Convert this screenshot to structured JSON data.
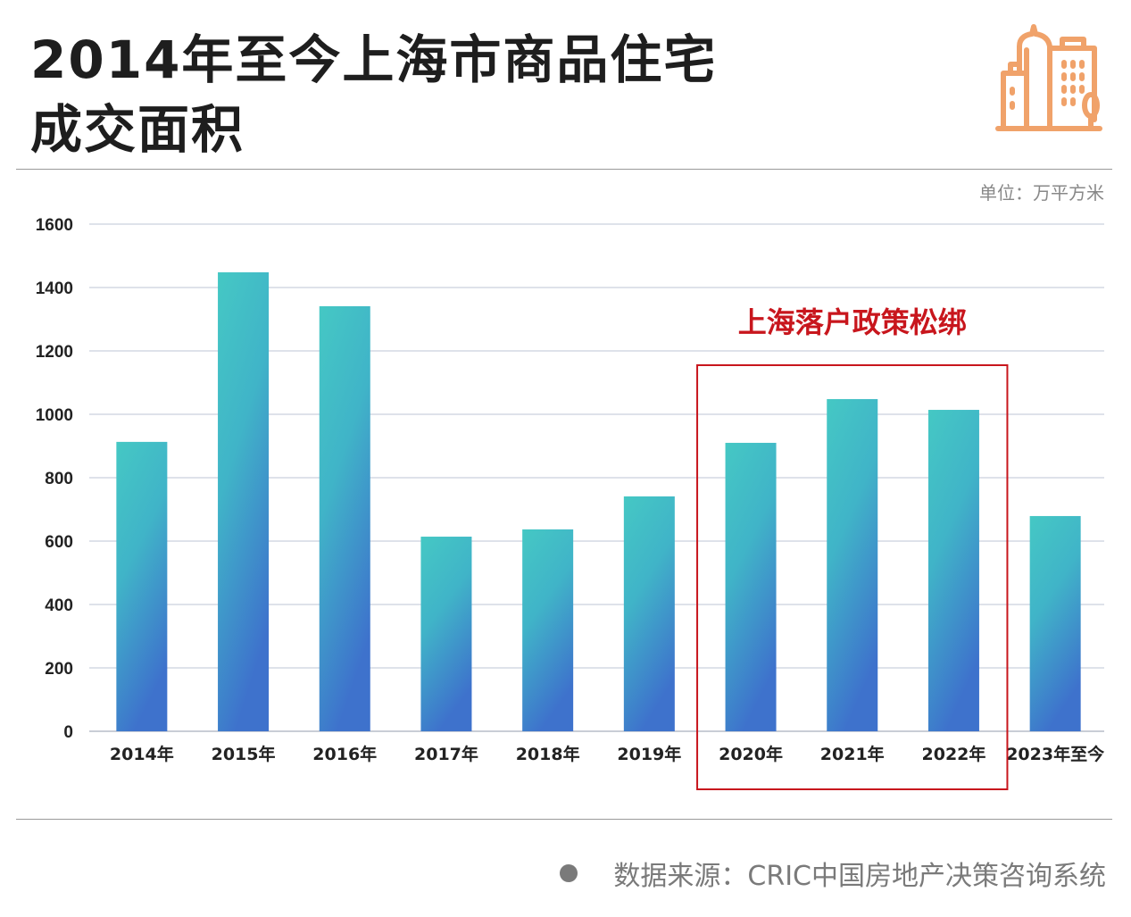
{
  "header": {
    "title_line1": "2014年至今上海市商品住宅",
    "title_line2": "成交面积",
    "icon": "city-buildings-icon",
    "icon_color": "#F0A26A"
  },
  "unit_label": "单位：万平方米",
  "annotation": {
    "text": "上海落户政策松绑",
    "color": "#C8161D",
    "highlight_categories": [
      "2020年",
      "2021年",
      "2022年"
    ]
  },
  "source": "数据来源：CRIC中国房地产决策咨询系统",
  "chart_data": {
    "type": "bar",
    "title": "2014年至今上海市商品住宅成交面积",
    "xlabel": "",
    "ylabel": "万平方米",
    "categories": [
      "2014年",
      "2015年",
      "2016年",
      "2017年",
      "2018年",
      "2019年",
      "2020年",
      "2021年",
      "2022年",
      "2023年至今"
    ],
    "values": [
      913,
      1448,
      1341,
      614,
      637,
      741,
      910,
      1048,
      1014,
      679
    ],
    "ylim": [
      0,
      1600
    ],
    "yticks": [
      0,
      200,
      400,
      600,
      800,
      1000,
      1200,
      1400,
      1600
    ],
    "grid": true,
    "bar_gradient": {
      "top": "#45C8C4",
      "bottom": "#3E72CC"
    },
    "legend": "none"
  }
}
